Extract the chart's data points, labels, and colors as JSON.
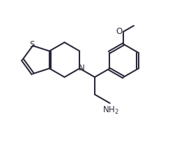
{
  "background": "#ffffff",
  "line_color": "#2a2a3a",
  "line_width": 1.5,
  "font_size": 8.5,
  "figsize": [
    2.77,
    2.15
  ],
  "dpi": 100,
  "bl": 1.0,
  "xlim": [
    0,
    11
  ],
  "ylim": [
    0,
    8.5
  ]
}
